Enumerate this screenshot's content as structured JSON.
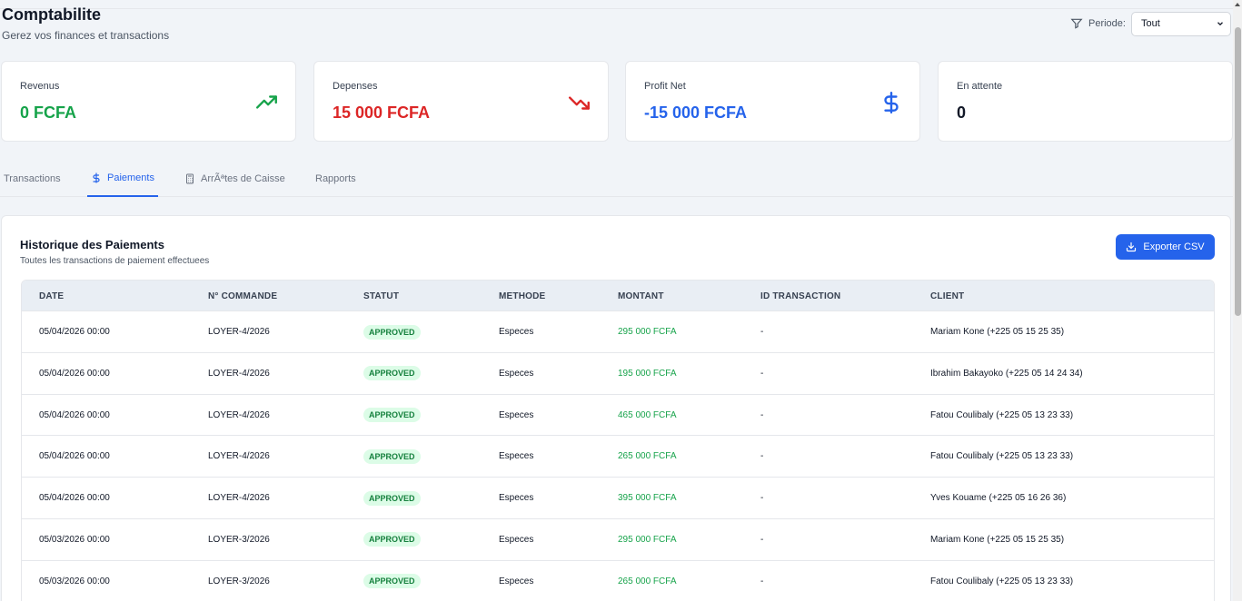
{
  "header": {
    "title": "Comptabilite",
    "subtitle": "Gerez vos finances et transactions",
    "periode_label": "Periode:",
    "periode_value": "Tout"
  },
  "cards": [
    {
      "label": "Revenus",
      "value": "0 FCFA",
      "color": "#16a34a",
      "icon": "trending-up-icon"
    },
    {
      "label": "Depenses",
      "value": "15 000 FCFA",
      "color": "#dc2626",
      "icon": "trending-down-icon"
    },
    {
      "label": "Profit Net",
      "value": "-15 000 FCFA",
      "color": "#2563eb",
      "icon": "dollar-icon"
    },
    {
      "label": "En attente",
      "value": "0",
      "color": "#111827",
      "icon": ""
    }
  ],
  "tabs": [
    {
      "label": "Transactions",
      "active": false
    },
    {
      "label": "Paiements",
      "active": true
    },
    {
      "label": "ArrÃªtes de Caisse",
      "active": false
    },
    {
      "label": "Rapports",
      "active": false
    }
  ],
  "panel": {
    "title": "Historique des Paiements",
    "subtitle": "Toutes les transactions de paiement effectuees",
    "export_label": "Exporter CSV"
  },
  "table": {
    "columns": [
      "DATE",
      "N° COMMANDE",
      "STATUT",
      "METHODE",
      "MONTANT",
      "ID TRANSACTION",
      "CLIENT"
    ],
    "rows": [
      {
        "date": "05/04/2026 00:00",
        "commande": "LOYER-4/2026",
        "statut": "APPROVED",
        "methode": "Especes",
        "montant": "295 000 FCFA",
        "id": "-",
        "client": "Mariam Kone (+225 05 15 25 35)"
      },
      {
        "date": "05/04/2026 00:00",
        "commande": "LOYER-4/2026",
        "statut": "APPROVED",
        "methode": "Especes",
        "montant": "195 000 FCFA",
        "id": "-",
        "client": "Ibrahim Bakayoko (+225 05 14 24 34)"
      },
      {
        "date": "05/04/2026 00:00",
        "commande": "LOYER-4/2026",
        "statut": "APPROVED",
        "methode": "Especes",
        "montant": "465 000 FCFA",
        "id": "-",
        "client": "Fatou Coulibaly (+225 05 13 23 33)"
      },
      {
        "date": "05/04/2026 00:00",
        "commande": "LOYER-4/2026",
        "statut": "APPROVED",
        "methode": "Especes",
        "montant": "265 000 FCFA",
        "id": "-",
        "client": "Fatou Coulibaly (+225 05 13 23 33)"
      },
      {
        "date": "05/04/2026 00:00",
        "commande": "LOYER-4/2026",
        "statut": "APPROVED",
        "methode": "Especes",
        "montant": "395 000 FCFA",
        "id": "-",
        "client": "Yves Kouame (+225 05 16 26 36)"
      },
      {
        "date": "05/03/2026 00:00",
        "commande": "LOYER-3/2026",
        "statut": "APPROVED",
        "methode": "Especes",
        "montant": "295 000 FCFA",
        "id": "-",
        "client": "Mariam Kone (+225 05 15 25 35)"
      },
      {
        "date": "05/03/2026 00:00",
        "commande": "LOYER-3/2026",
        "statut": "APPROVED",
        "methode": "Especes",
        "montant": "265 000 FCFA",
        "id": "-",
        "client": "Fatou Coulibaly (+225 05 13 23 33)"
      }
    ]
  }
}
